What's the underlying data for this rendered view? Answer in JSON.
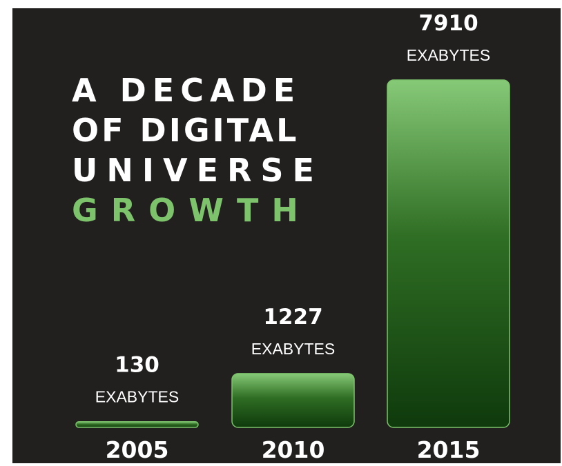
{
  "title": {
    "line1": "A DECADE",
    "line2": "OF DIGITAL",
    "line3": "UNIVERSE",
    "line4": "GROWTH"
  },
  "colors": {
    "background": "#221f1f",
    "accent": "#7cc36b",
    "bar_top": "#86c977",
    "bar_bottom": "#0f3a0c",
    "text": "#ffffff"
  },
  "chart_data": {
    "type": "bar",
    "title": "A DECADE OF DIGITAL UNIVERSE GROWTH",
    "categories": [
      "2005",
      "2010",
      "2015"
    ],
    "values": [
      130,
      1227,
      7910
    ],
    "unit": "EXABYTES",
    "xlabel": "",
    "ylabel": "",
    "grid": false,
    "legend": "none"
  }
}
